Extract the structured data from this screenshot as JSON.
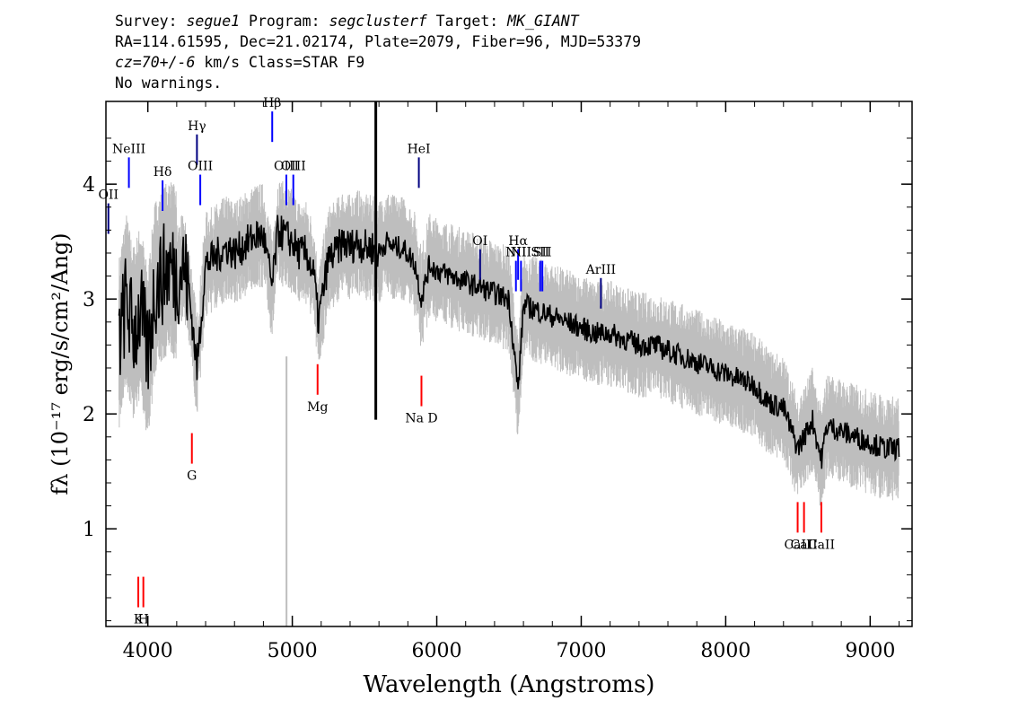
{
  "header": {
    "line1": {
      "survey_label": "Survey:",
      "survey": "segue1",
      "program_label": "Program:",
      "program": "segclusterf",
      "target_label": "Target:",
      "target": "MK_GIANT"
    },
    "line2": "RA=114.61595, Dec=21.02174, Plate=2079, Fiber=96, MJD=53379",
    "line3": {
      "cz": "cz=70+/-6",
      "rest": "km/s Class=STAR F9"
    },
    "line4": "No warnings."
  },
  "chart_data": {
    "type": "line",
    "title": "",
    "xlabel": "Wavelength (Angstroms)",
    "ylabel": "fλ (10⁻¹⁷ erg/s/cm²/Ang)",
    "xlim": [
      3710,
      9290
    ],
    "ylim": [
      0.15,
      4.72
    ],
    "x_ticks": [
      4000,
      5000,
      6000,
      7000,
      8000,
      9000
    ],
    "y_ticks": [
      1,
      2,
      3,
      4
    ],
    "grid": false,
    "colors": {
      "spectrum": "#000000",
      "error_band": "#bebebe",
      "emission_lines": "#0000ff",
      "emission_lines_other": "#000080",
      "absorption_lines": "#ff0000"
    },
    "series": [
      {
        "name": "",
        "role": "smoothed flux",
        "x": [
          3800,
          3850,
          3900,
          3950,
          4000,
          4050,
          4100,
          4150,
          4200,
          4250,
          4300,
          4340,
          4400,
          4450,
          4500,
          4550,
          4600,
          4650,
          4700,
          4750,
          4800,
          4861,
          4900,
          4950,
          5000,
          5050,
          5100,
          5150,
          5180,
          5250,
          5300,
          5350,
          5400,
          5450,
          5500,
          5550,
          5600,
          5650,
          5700,
          5750,
          5800,
          5850,
          5893,
          5950,
          6000,
          6100,
          6200,
          6300,
          6400,
          6500,
          6563,
          6600,
          6700,
          6800,
          6900,
          7000,
          7100,
          7200,
          7300,
          7400,
          7500,
          7600,
          7700,
          7800,
          7900,
          8000,
          8100,
          8200,
          8300,
          8400,
          8498,
          8542,
          8600,
          8662,
          8700,
          8800,
          8900,
          9000,
          9100,
          9200
        ],
        "y": [
          2.6,
          3.0,
          2.7,
          2.9,
          2.5,
          3.1,
          3.2,
          3.3,
          3.2,
          3.3,
          2.9,
          2.4,
          3.3,
          3.35,
          3.4,
          3.45,
          3.4,
          3.45,
          3.5,
          3.55,
          3.55,
          3.1,
          3.6,
          3.55,
          3.5,
          3.4,
          3.4,
          3.2,
          2.8,
          3.35,
          3.4,
          3.5,
          3.45,
          3.5,
          3.45,
          3.45,
          3.4,
          3.5,
          3.45,
          3.45,
          3.4,
          3.3,
          3.0,
          3.3,
          3.25,
          3.2,
          3.15,
          3.1,
          3.05,
          3.0,
          2.2,
          2.95,
          2.9,
          2.85,
          2.8,
          2.75,
          2.7,
          2.7,
          2.65,
          2.6,
          2.6,
          2.55,
          2.5,
          2.45,
          2.4,
          2.35,
          2.3,
          2.25,
          2.1,
          2.05,
          1.7,
          1.8,
          1.95,
          1.6,
          1.9,
          1.85,
          1.8,
          1.75,
          1.7,
          1.7
        ]
      }
    ],
    "lines": [
      {
        "label": "OII",
        "x": 3727,
        "y": 3.7,
        "color": "#000080"
      },
      {
        "label": "NeIII",
        "x": 3869,
        "y": 4.1,
        "color": "#0000ff"
      },
      {
        "label": "Hδ",
        "x": 4102,
        "y": 3.9,
        "color": "#0000ff"
      },
      {
        "label": "Hγ",
        "x": 4340,
        "y": 4.3,
        "color": "#000080"
      },
      {
        "label": "OIII",
        "x": 4363,
        "y": 3.95,
        "color": "#0000ff"
      },
      {
        "label": "Hβ",
        "x": 4861,
        "y": 4.5,
        "color": "#0000ff"
      },
      {
        "label": "OIII",
        "x": 4959,
        "y": 3.95,
        "color": "#0000ff"
      },
      {
        "label": "OIII",
        "x": 5007,
        "y": 3.95,
        "color": "#0000ff"
      },
      {
        "label": "HeI",
        "x": 5876,
        "y": 4.1,
        "color": "#000080"
      },
      {
        "label": "OI",
        "x": 6300,
        "y": 3.3,
        "color": "#000080"
      },
      {
        "label": "NII",
        "x": 6548,
        "y": 3.2,
        "color": "#0000ff"
      },
      {
        "label": "Hα",
        "x": 6563,
        "y": 3.3,
        "color": "#0000ff"
      },
      {
        "label": "NII",
        "x": 6583,
        "y": 3.2,
        "color": "#0000ff"
      },
      {
        "label": "SII",
        "x": 6716,
        "y": 3.2,
        "color": "#0000ff"
      },
      {
        "label": "SII",
        "x": 6731,
        "y": 3.2,
        "color": "#0000ff"
      },
      {
        "label": "ArIII",
        "x": 7136,
        "y": 3.05,
        "color": "#000080"
      },
      {
        "label": "K",
        "x": 3934,
        "y": 0.45,
        "color": "#ff0000"
      },
      {
        "label": "H",
        "x": 3969,
        "y": 0.45,
        "color": "#ff0000"
      },
      {
        "label": "G",
        "x": 4305,
        "y": 1.7,
        "color": "#ff0000"
      },
      {
        "label": "Mg",
        "x": 5175,
        "y": 2.3,
        "color": "#ff0000"
      },
      {
        "label": "Na D",
        "x": 5894,
        "y": 2.2,
        "color": "#ff0000"
      },
      {
        "label": "CaII",
        "x": 8498,
        "y": 1.1,
        "color": "#ff0000"
      },
      {
        "label": "CaII",
        "x": 8542,
        "y": 1.1,
        "color": "#ff0000"
      },
      {
        "label": "CaII",
        "x": 8662,
        "y": 1.1,
        "color": "#ff0000"
      }
    ]
  }
}
